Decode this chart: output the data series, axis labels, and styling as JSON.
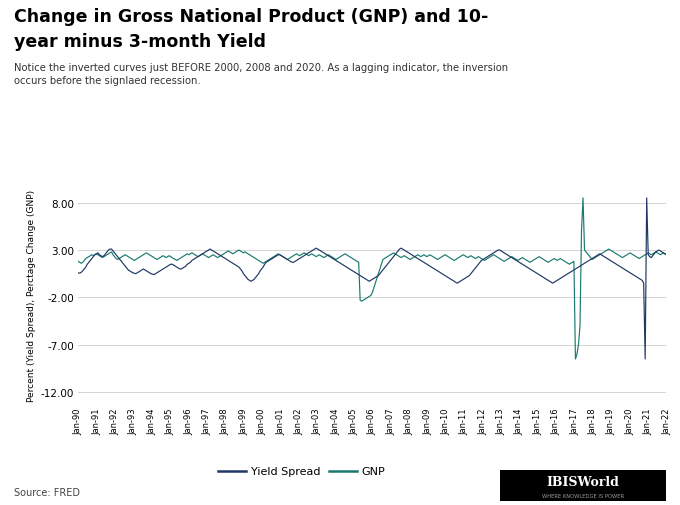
{
  "title_line1": "Change in Gross National Product (GNP) and 10-",
  "title_line2": "year minus 3-month Yield",
  "subtitle": "Notice the inverted curves just BEFORE 2000, 2008 and 2020. As a lagging indicator, the inversion\noccurs before the signlaed recession.",
  "ylabel": "Percent (Yield Spread), Perctage Change (GNP)",
  "source": "Source: FRED",
  "yticks": [
    8.0,
    3.0,
    -2.0,
    -7.0,
    -12.0
  ],
  "ylim": [
    -13.5,
    10.0
  ],
  "yield_spread_color": "#1f3864",
  "gnp_color": "#1a7a6e",
  "background_color": "#ffffff",
  "x_labels": [
    "Jan-90",
    "Jan-91",
    "Jan-92",
    "Jan-93",
    "Jan-94",
    "Jan-95",
    "Jan-96",
    "Jan-97",
    "Jan-98",
    "Jan-99",
    "Jan-00",
    "Jan-01",
    "Jan-02",
    "Jan-03",
    "Jan-04",
    "Jan-05",
    "Jan-06",
    "Jan-07",
    "Jan-08",
    "Jan-09",
    "Jan-10",
    "Jan-11",
    "Jan-12",
    "Jan-13",
    "Jan-14",
    "Jan-15",
    "Jan-16",
    "Jan-17",
    "Jan-18",
    "Jan-19",
    "Jan-20",
    "Jan-21",
    "Jan-22"
  ],
  "yield_spread": [
    0.6,
    0.55,
    0.65,
    0.8,
    1.0,
    1.2,
    1.5,
    1.7,
    1.9,
    2.1,
    2.3,
    2.5,
    2.6,
    2.7,
    2.5,
    2.4,
    2.3,
    2.4,
    2.6,
    2.8,
    3.0,
    3.1,
    3.1,
    2.9,
    2.7,
    2.5,
    2.3,
    2.1,
    1.9,
    1.7,
    1.5,
    1.3,
    1.1,
    0.9,
    0.8,
    0.7,
    0.6,
    0.55,
    0.5,
    0.6,
    0.7,
    0.8,
    0.9,
    1.0,
    0.9,
    0.8,
    0.7,
    0.6,
    0.5,
    0.45,
    0.4,
    0.5,
    0.6,
    0.7,
    0.8,
    0.9,
    1.0,
    1.1,
    1.2,
    1.3,
    1.4,
    1.5,
    1.5,
    1.4,
    1.3,
    1.2,
    1.1,
    1.0,
    1.0,
    1.1,
    1.2,
    1.3,
    1.5,
    1.6,
    1.7,
    1.9,
    2.0,
    2.1,
    2.2,
    2.3,
    2.4,
    2.5,
    2.6,
    2.7,
    2.8,
    2.9,
    3.0,
    3.1,
    3.0,
    2.9,
    2.8,
    2.7,
    2.6,
    2.5,
    2.4,
    2.3,
    2.2,
    2.1,
    2.0,
    1.9,
    1.8,
    1.7,
    1.6,
    1.5,
    1.4,
    1.3,
    1.2,
    1.0,
    0.8,
    0.5,
    0.3,
    0.1,
    -0.1,
    -0.2,
    -0.3,
    -0.2,
    -0.1,
    0.1,
    0.3,
    0.5,
    0.8,
    1.0,
    1.2,
    1.5,
    1.7,
    1.8,
    1.9,
    2.0,
    2.1,
    2.2,
    2.3,
    2.4,
    2.5,
    2.5,
    2.4,
    2.3,
    2.2,
    2.1,
    2.0,
    1.9,
    1.8,
    1.7,
    1.7,
    1.8,
    1.9,
    2.0,
    2.1,
    2.2,
    2.3,
    2.4,
    2.5,
    2.6,
    2.7,
    2.8,
    2.9,
    3.0,
    3.1,
    3.2,
    3.1,
    3.0,
    2.9,
    2.8,
    2.7,
    2.6,
    2.5,
    2.4,
    2.3,
    2.2,
    2.1,
    2.0,
    1.9,
    1.8,
    1.7,
    1.6,
    1.5,
    1.4,
    1.3,
    1.2,
    1.1,
    1.0,
    0.9,
    0.8,
    0.7,
    0.6,
    0.5,
    0.4,
    0.3,
    0.2,
    0.1,
    0.0,
    -0.1,
    -0.2,
    -0.3,
    -0.2,
    -0.1,
    0.0,
    0.1,
    0.2,
    0.3,
    0.5,
    0.7,
    0.9,
    1.1,
    1.3,
    1.5,
    1.7,
    1.9,
    2.1,
    2.3,
    2.5,
    2.7,
    2.9,
    3.1,
    3.2,
    3.1,
    3.0,
    2.9,
    2.8,
    2.7,
    2.6,
    2.5,
    2.4,
    2.3,
    2.2,
    2.1,
    2.0,
    1.9,
    1.8,
    1.7,
    1.6,
    1.5,
    1.4,
    1.3,
    1.2,
    1.1,
    1.0,
    0.9,
    0.8,
    0.7,
    0.6,
    0.5,
    0.4,
    0.3,
    0.2,
    0.1,
    0.0,
    -0.1,
    -0.2,
    -0.3,
    -0.4,
    -0.5,
    -0.4,
    -0.3,
    -0.2,
    -0.1,
    0.0,
    0.1,
    0.2,
    0.3,
    0.5,
    0.7,
    0.9,
    1.1,
    1.3,
    1.5,
    1.7,
    1.9,
    2.0,
    2.1,
    2.2,
    2.3,
    2.4,
    2.5,
    2.6,
    2.7,
    2.8,
    2.9,
    3.0,
    3.0,
    2.9,
    2.8,
    2.7,
    2.6,
    2.5,
    2.4,
    2.3,
    2.2,
    2.1,
    2.0,
    1.9,
    1.8,
    1.7,
    1.6,
    1.5,
    1.4,
    1.3,
    1.2,
    1.1,
    1.0,
    0.9,
    0.8,
    0.7,
    0.6,
    0.5,
    0.4,
    0.3,
    0.2,
    0.1,
    0.0,
    -0.1,
    -0.2,
    -0.3,
    -0.4,
    -0.5,
    -0.4,
    -0.3,
    -0.2,
    -0.1,
    0.0,
    0.1,
    0.2,
    0.3,
    0.4,
    0.5,
    0.6,
    0.7,
    0.8,
    0.9,
    1.0,
    1.1,
    1.2,
    1.3,
    1.4,
    1.5,
    1.6,
    1.7,
    1.8,
    1.9,
    2.0,
    2.1,
    2.2,
    2.3,
    2.4,
    2.5,
    2.6,
    2.5,
    2.4,
    2.3,
    2.2,
    2.1,
    2.0,
    1.9,
    1.8,
    1.7,
    1.6,
    1.5,
    1.4,
    1.3,
    1.2,
    1.1,
    1.0,
    0.9,
    0.8,
    0.7,
    0.6,
    0.5,
    0.4,
    0.3,
    0.2,
    0.1,
    0.0,
    -0.1,
    -0.2,
    -0.5,
    -8.5,
    8.5,
    2.5,
    2.3,
    2.2,
    2.4,
    2.6,
    2.8,
    2.9,
    3.0,
    2.9,
    2.8,
    2.7,
    2.6,
    2.5
  ],
  "gnp": [
    1.8,
    1.7,
    1.6,
    1.7,
    1.9,
    2.1,
    2.2,
    2.3,
    2.4,
    2.5,
    2.4,
    2.5,
    2.6,
    2.5,
    2.4,
    2.3,
    2.2,
    2.3,
    2.4,
    2.5,
    2.6,
    2.7,
    2.8,
    2.5,
    2.3,
    2.1,
    2.0,
    2.1,
    2.2,
    2.3,
    2.4,
    2.5,
    2.4,
    2.3,
    2.2,
    2.1,
    2.0,
    1.9,
    2.0,
    2.1,
    2.2,
    2.3,
    2.4,
    2.5,
    2.6,
    2.7,
    2.6,
    2.5,
    2.4,
    2.3,
    2.2,
    2.1,
    2.0,
    2.1,
    2.2,
    2.3,
    2.4,
    2.3,
    2.2,
    2.3,
    2.4,
    2.3,
    2.2,
    2.1,
    2.0,
    1.9,
    2.0,
    2.1,
    2.2,
    2.3,
    2.4,
    2.5,
    2.6,
    2.5,
    2.6,
    2.7,
    2.6,
    2.5,
    2.4,
    2.3,
    2.4,
    2.5,
    2.6,
    2.5,
    2.4,
    2.3,
    2.2,
    2.3,
    2.4,
    2.5,
    2.4,
    2.3,
    2.2,
    2.3,
    2.4,
    2.5,
    2.6,
    2.7,
    2.8,
    2.9,
    2.8,
    2.7,
    2.6,
    2.7,
    2.8,
    2.9,
    3.0,
    2.9,
    2.8,
    2.7,
    2.8,
    2.7,
    2.6,
    2.5,
    2.4,
    2.3,
    2.2,
    2.1,
    2.0,
    1.9,
    1.8,
    1.7,
    1.6,
    1.7,
    1.8,
    1.9,
    2.0,
    2.1,
    2.2,
    2.3,
    2.4,
    2.5,
    2.6,
    2.5,
    2.4,
    2.3,
    2.2,
    2.1,
    2.0,
    2.1,
    2.2,
    2.3,
    2.4,
    2.5,
    2.6,
    2.5,
    2.4,
    2.5,
    2.6,
    2.7,
    2.6,
    2.5,
    2.4,
    2.5,
    2.6,
    2.5,
    2.4,
    2.3,
    2.4,
    2.5,
    2.4,
    2.3,
    2.2,
    2.3,
    2.4,
    2.5,
    2.4,
    2.3,
    2.2,
    2.1,
    2.0,
    2.1,
    2.2,
    2.3,
    2.4,
    2.5,
    2.6,
    2.5,
    2.4,
    2.3,
    2.2,
    2.1,
    2.0,
    1.9,
    1.8,
    1.7,
    -2.3,
    -2.4,
    -2.3,
    -2.2,
    -2.1,
    -2.0,
    -1.9,
    -1.8,
    -1.5,
    -1.0,
    -0.5,
    0.0,
    0.5,
    1.0,
    1.5,
    2.0,
    2.1,
    2.2,
    2.3,
    2.4,
    2.5,
    2.6,
    2.7,
    2.6,
    2.5,
    2.4,
    2.3,
    2.2,
    2.3,
    2.4,
    2.3,
    2.2,
    2.1,
    2.0,
    2.1,
    2.2,
    2.3,
    2.4,
    2.5,
    2.4,
    2.3,
    2.4,
    2.5,
    2.4,
    2.3,
    2.4,
    2.5,
    2.4,
    2.3,
    2.2,
    2.1,
    2.0,
    2.1,
    2.2,
    2.3,
    2.4,
    2.5,
    2.4,
    2.3,
    2.2,
    2.1,
    2.0,
    1.9,
    2.0,
    2.1,
    2.2,
    2.3,
    2.4,
    2.5,
    2.4,
    2.3,
    2.2,
    2.3,
    2.4,
    2.3,
    2.2,
    2.1,
    2.2,
    2.3,
    2.2,
    2.1,
    2.0,
    1.9,
    2.0,
    2.1,
    2.2,
    2.3,
    2.4,
    2.5,
    2.4,
    2.3,
    2.2,
    2.1,
    2.0,
    1.9,
    1.8,
    1.9,
    2.0,
    2.1,
    2.2,
    2.3,
    2.2,
    2.1,
    2.0,
    1.9,
    2.0,
    2.1,
    2.2,
    2.1,
    2.0,
    1.9,
    1.8,
    1.7,
    1.8,
    1.9,
    2.0,
    2.1,
    2.2,
    2.3,
    2.2,
    2.1,
    2.0,
    1.9,
    1.8,
    1.7,
    1.8,
    1.9,
    2.0,
    2.1,
    2.0,
    1.9,
    2.0,
    2.1,
    2.0,
    1.9,
    1.8,
    1.7,
    1.6,
    1.5,
    1.6,
    1.7,
    1.8,
    -8.5,
    -8.0,
    -7.0,
    -5.0,
    5.0,
    8.5,
    3.0,
    2.8,
    2.6,
    2.4,
    2.2,
    2.0,
    2.1,
    2.2,
    2.3,
    2.4,
    2.5,
    2.6,
    2.7,
    2.8,
    2.9,
    3.0,
    3.1,
    3.0,
    2.9,
    2.8,
    2.7,
    2.6,
    2.5,
    2.4,
    2.3,
    2.2,
    2.3,
    2.4,
    2.5,
    2.6,
    2.7,
    2.6,
    2.5,
    2.4,
    2.3,
    2.2,
    2.1,
    2.2,
    2.3,
    2.4,
    2.5,
    2.6,
    2.7,
    2.6,
    2.5,
    2.6,
    2.7,
    2.8,
    2.7,
    2.6,
    2.5,
    2.6,
    2.7,
    2.6,
    2.5
  ]
}
